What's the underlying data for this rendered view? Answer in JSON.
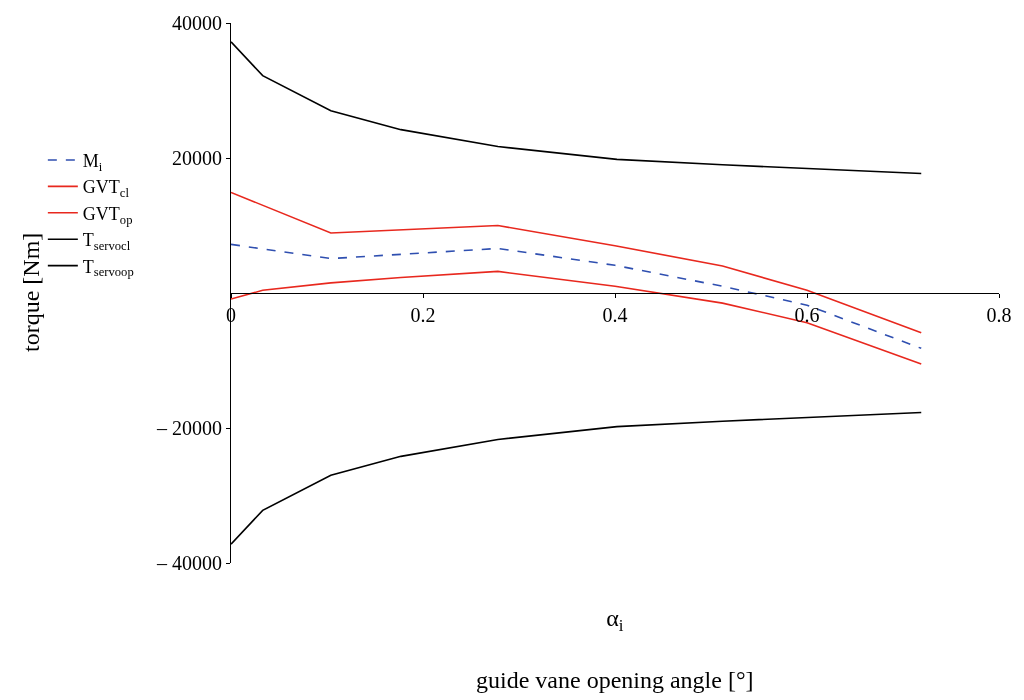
{
  "chart_data": {
    "type": "line",
    "xlabel": "α$_{i}$\n\nguide vane opening angle [°]",
    "ylabel": "torque [Nm]",
    "xlim": [
      0,
      0.8
    ],
    "xticks": [
      0,
      0.2,
      0.4,
      0.6,
      0.8
    ],
    "ylim": [
      -40000,
      40000
    ],
    "yticks": [
      {
        "value": -40000,
        "label": "– 40000"
      },
      {
        "value": -20000,
        "label": "– 20000"
      },
      20000,
      40000
    ],
    "legend": "left",
    "marker": "none",
    "series": [
      {
        "name": "M$_{i}$",
        "color": "#2f4fb0",
        "line_style": "dashed",
        "x": [
          0,
          0.104,
          0.278,
          0.4,
          0.512,
          0.6,
          0.719
        ],
        "values": [
          7200,
          5100,
          6600,
          4100,
          1000,
          -1800,
          -8200
        ]
      },
      {
        "name": "GVT$_{cl}$",
        "color": "#e8281e",
        "line_style": "solid",
        "x": [
          0,
          0.104,
          0.278,
          0.4,
          0.512,
          0.6,
          0.719
        ],
        "values": [
          14900,
          8900,
          10000,
          7000,
          4000,
          400,
          -5900
        ]
      },
      {
        "name": "GVT$_{op}$",
        "color": "#e8281e",
        "line_style": "solid",
        "x": [
          0,
          0.033,
          0.104,
          0.177,
          0.278,
          0.4,
          0.512,
          0.6,
          0.719
        ],
        "values": [
          -900,
          400,
          1500,
          2300,
          3200,
          1000,
          -1500,
          -4400,
          -10500
        ]
      },
      {
        "name": "T$_{servocl}$",
        "color": "#000000",
        "line_style": "solid",
        "x": [
          0,
          0.033,
          0.104,
          0.177,
          0.278,
          0.402,
          0.512,
          0.719
        ],
        "values": [
          37200,
          32200,
          27000,
          24200,
          21700,
          19800,
          19000,
          17700
        ]
      },
      {
        "name": "T$_{servoop}$",
        "color": "#000000",
        "line_style": "solid",
        "x": [
          0,
          0.033,
          0.104,
          0.177,
          0.278,
          0.402,
          0.512,
          0.719
        ],
        "values": [
          -37200,
          -32200,
          -27000,
          -24200,
          -21700,
          -19800,
          -19000,
          -17700
        ]
      }
    ]
  }
}
